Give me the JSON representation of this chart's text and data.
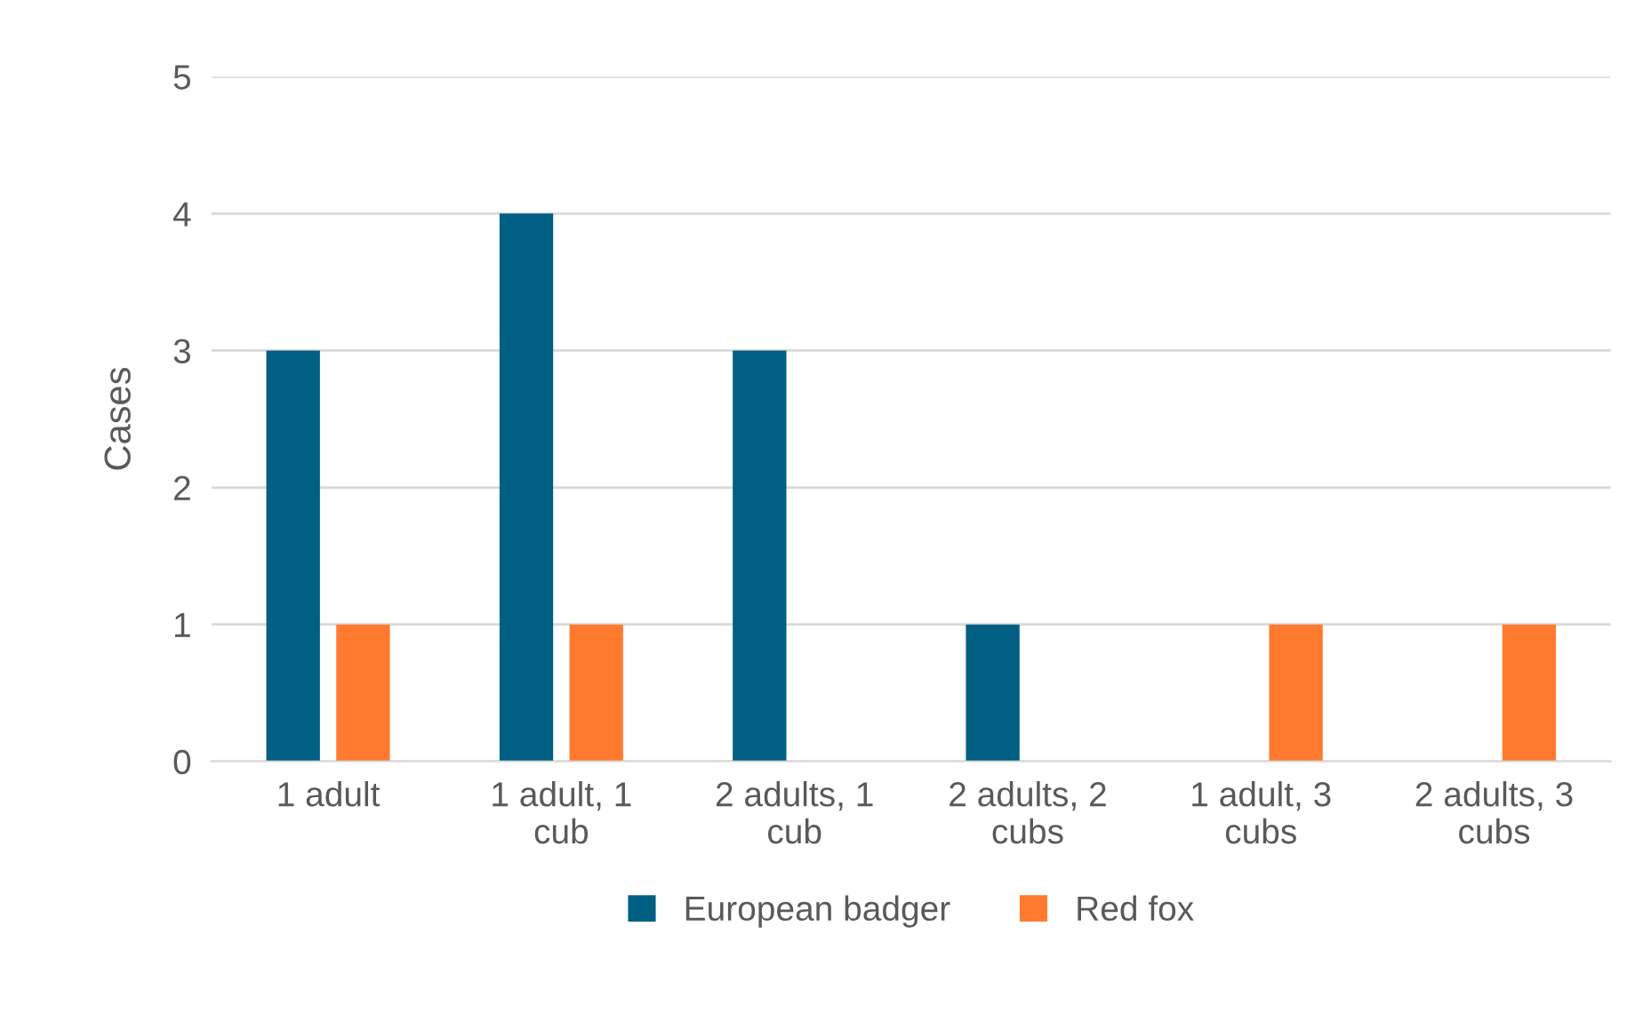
{
  "chart_data": {
    "type": "bar",
    "ylabel": "Cases",
    "categories": [
      "1 adult",
      "1 adult, 1\ncub",
      "2 adults, 1\ncub",
      "2 adults, 2\ncubs",
      "1 adult, 3\ncubs",
      "2 adults, 3\ncubs"
    ],
    "series": [
      {
        "name": "European badger",
        "color": "#005f83",
        "values": [
          3,
          4,
          3,
          1,
          0,
          0
        ]
      },
      {
        "name": "Red fox",
        "color": "#ff7a2f",
        "values": [
          1,
          1,
          0,
          0,
          1,
          1
        ]
      }
    ],
    "ylim": [
      0,
      5
    ],
    "yticks": [
      0,
      1,
      2,
      3,
      4,
      5
    ],
    "grid": "y",
    "legend": "bottom"
  }
}
